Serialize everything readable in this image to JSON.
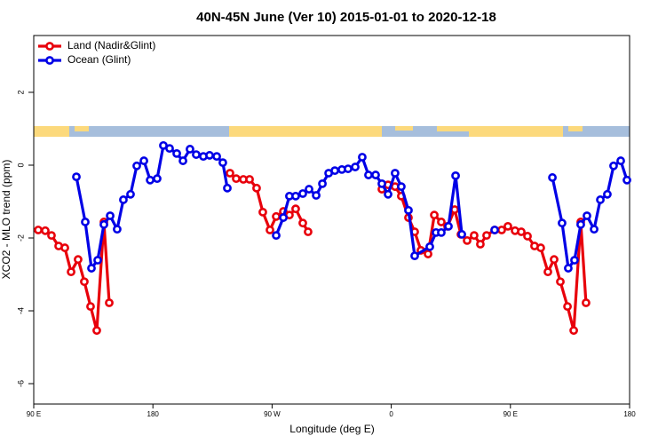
{
  "chart_data": {
    "type": "line",
    "title": "40N-45N June (Ver 10)   2015-01-01 to 2020-12-18",
    "x_label": "Longitude (deg E)",
    "y_label": "XCO2 - MLO trend (ppm)",
    "xlim": [
      90,
      540
    ],
    "xticks": [
      {
        "value": 90,
        "label": "90 E"
      },
      {
        "value": 180,
        "label": "180"
      },
      {
        "value": 270,
        "label": "90 W"
      },
      {
        "value": 360,
        "label": "0"
      },
      {
        "value": 450,
        "label": "90 E"
      },
      {
        "value": 540,
        "label": "180"
      }
    ],
    "ylim": [
      -6.56,
      3.56
    ],
    "yticks": [
      -6,
      -4,
      -2,
      0,
      2
    ],
    "legend": "top left",
    "series": [
      {
        "name": "Land (Nadir&Glint)",
        "color": "#e8000b",
        "x": [
          93.4,
          98.7,
          103.4,
          108.8,
          113.5,
          118.2,
          123.5,
          128.2,
          132.9,
          137.6,
          143.0,
          147.0,
          null,
          238.2,
          242.9,
          248.3,
          253.0,
          258.3,
          263.0,
          268.4,
          273.1,
          278.5,
          283.1,
          287.8,
          293.2,
          297.2,
          null,
          352.9,
          357.6,
          362.9,
          367.6,
          373.0,
          377.7,
          382.4,
          387.8,
          392.5,
          397.8,
          402.5,
          407.9,
          412.6,
          417.3,
          422.6,
          427.3,
          432.0,
          438.1,
          443.4,
          448.1,
          453.5,
          458.2,
          462.9,
          468.2,
          472.9,
          478.3,
          483.0,
          487.7,
          493.1,
          497.8,
          503.1,
          507.1
        ],
        "values": [
          -1.78,
          -1.8,
          -1.93,
          -2.22,
          -2.27,
          -2.93,
          -2.59,
          -3.2,
          -3.88,
          -4.54,
          -1.56,
          -3.78,
          null,
          -0.22,
          -0.37,
          -0.39,
          -0.39,
          -0.63,
          -1.29,
          -1.78,
          -1.41,
          -1.27,
          -1.37,
          -1.2,
          -1.59,
          -1.83,
          null,
          -0.66,
          -0.54,
          -0.59,
          -0.85,
          -1.44,
          -1.83,
          -2.34,
          -2.44,
          -1.37,
          -1.56,
          -1.68,
          -1.22,
          -1.9,
          -2.07,
          -1.93,
          -2.17,
          -1.93,
          -1.78,
          -1.78,
          -1.68,
          -1.8,
          -1.83,
          -1.95,
          -2.22,
          -2.27,
          -2.93,
          -2.59,
          -3.2,
          -3.88,
          -4.54,
          -1.56,
          -3.78
        ]
      },
      {
        "name": "Ocean (Glint)",
        "color": "#0000e6",
        "x": [
          122.2,
          128.9,
          133.6,
          138.3,
          143.0,
          147.7,
          153.0,
          157.7,
          163.1,
          167.8,
          173.2,
          177.9,
          183.2,
          187.9,
          192.6,
          198.0,
          202.7,
          208.0,
          212.7,
          218.1,
          222.8,
          228.2,
          232.8,
          236.2,
          null,
          273.1,
          278.5,
          283.1,
          287.8,
          293.2,
          297.9,
          303.3,
          308.0,
          312.7,
          317.4,
          322.7,
          327.4,
          332.8,
          338.1,
          342.8,
          348.2,
          352.9,
          357.6,
          362.9,
          367.6,
          373.0,
          377.7,
          389.1,
          393.8,
          397.8,
          403.2,
          408.6,
          413.3,
          null,
          438.1,
          null,
          481.7,
          489.0,
          493.7,
          498.4,
          503.1,
          507.8,
          513.2,
          517.9,
          523.2,
          527.9,
          533.3,
          538.0
        ],
        "values": [
          -0.32,
          -1.56,
          -2.83,
          -2.61,
          -1.63,
          -1.39,
          -1.76,
          -0.95,
          -0.8,
          -0.02,
          0.12,
          -0.41,
          -0.37,
          0.54,
          0.46,
          0.32,
          0.12,
          0.44,
          0.29,
          0.24,
          0.27,
          0.24,
          0.07,
          -0.63,
          null,
          -1.93,
          -1.44,
          -0.85,
          -0.85,
          -0.78,
          -0.66,
          -0.83,
          -0.51,
          -0.22,
          -0.15,
          -0.12,
          -0.1,
          -0.05,
          0.22,
          -0.27,
          -0.27,
          -0.51,
          -0.8,
          -0.22,
          -0.59,
          -1.24,
          -2.49,
          -2.24,
          -1.85,
          -1.85,
          -1.68,
          -0.29,
          -1.9,
          null,
          -1.78,
          null,
          -0.34,
          -1.59,
          -2.83,
          -2.61,
          -1.63,
          -1.39,
          -1.76,
          -0.95,
          -0.8,
          -0.02,
          0.12,
          -0.41
        ]
      }
    ]
  }
}
